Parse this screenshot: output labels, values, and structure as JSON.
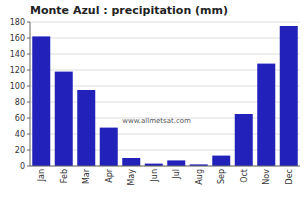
{
  "chart_data": {
    "type": "bar",
    "title": "Monte Azul : precipitation (mm)",
    "categories": [
      "Jan",
      "Feb",
      "Mar",
      "Apr",
      "May",
      "Jun",
      "Jul",
      "Aug",
      "Sep",
      "Oct",
      "Nov",
      "Dec"
    ],
    "values": [
      162,
      118,
      95,
      48,
      10,
      3,
      7,
      2,
      13,
      65,
      128,
      175
    ],
    "color": "#2222bb",
    "ylim": [
      0,
      180
    ],
    "yticks": [
      0,
      20,
      40,
      60,
      80,
      100,
      120,
      140,
      160,
      180
    ],
    "grid": true,
    "annotations": [
      "www.allmetsat.com"
    ]
  }
}
